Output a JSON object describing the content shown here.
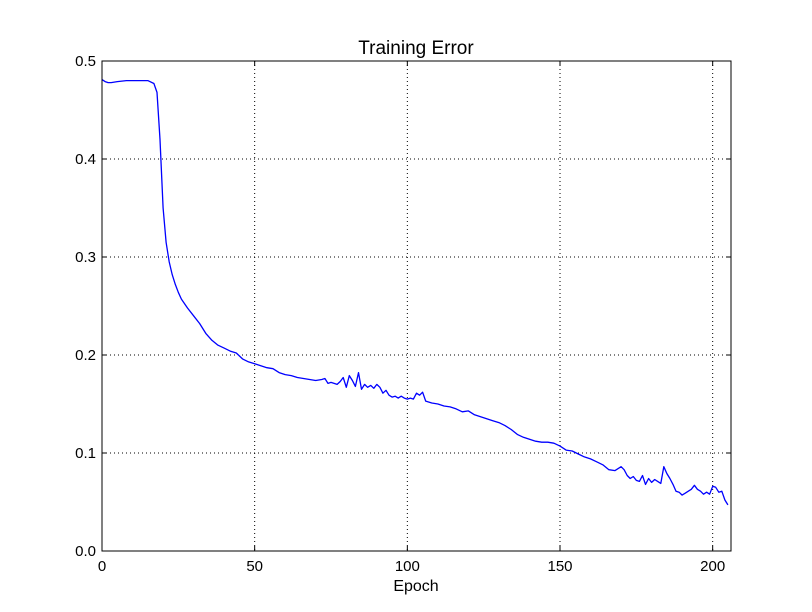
{
  "chart_data": {
    "type": "line",
    "title": "Training Error",
    "xlabel": "Epoch",
    "ylabel": "",
    "xlim": [
      0,
      206
    ],
    "ylim": [
      0.0,
      0.5
    ],
    "x_ticks": [
      0,
      50,
      100,
      150,
      200
    ],
    "x_tick_labels": [
      "0",
      "50",
      "100",
      "150",
      "200"
    ],
    "y_ticks": [
      0.0,
      0.1,
      0.2,
      0.3,
      0.4,
      0.5
    ],
    "y_tick_labels": [
      "0.0",
      "0.1",
      "0.2",
      "0.3",
      "0.4",
      "0.5"
    ],
    "grid": true,
    "series": [
      {
        "color": "#0000ff",
        "x": [
          0,
          1,
          2,
          3,
          5,
          8,
          12,
          15,
          17,
          18,
          19,
          20,
          21,
          22,
          23,
          24,
          25,
          26,
          28,
          30,
          32,
          34,
          36,
          38,
          40,
          42,
          44,
          46,
          48,
          50,
          52,
          54,
          56,
          58,
          60,
          62,
          64,
          66,
          68,
          70,
          72,
          73,
          74,
          75,
          76,
          77,
          78,
          79,
          80,
          81,
          82,
          83,
          84,
          85,
          86,
          87,
          88,
          89,
          90,
          91,
          92,
          93,
          94,
          95,
          96,
          97,
          98,
          99,
          100,
          101,
          102,
          103,
          104,
          105,
          106,
          108,
          110,
          112,
          114,
          116,
          118,
          120,
          122,
          124,
          126,
          128,
          130,
          132,
          134,
          136,
          138,
          140,
          142,
          144,
          146,
          148,
          150,
          152,
          154,
          156,
          158,
          160,
          162,
          164,
          166,
          168,
          170,
          171,
          172,
          173,
          174,
          175,
          176,
          177,
          178,
          179,
          180,
          181,
          182,
          183,
          184,
          185,
          186,
          187,
          188,
          189,
          190,
          191,
          192,
          193,
          194,
          195,
          196,
          197,
          198,
          199,
          200,
          201,
          202,
          203,
          204,
          205
        ],
        "y": [
          0.481,
          0.479,
          0.478,
          0.478,
          0.479,
          0.48,
          0.48,
          0.48,
          0.477,
          0.468,
          0.42,
          0.35,
          0.315,
          0.295,
          0.282,
          0.272,
          0.264,
          0.257,
          0.248,
          0.24,
          0.232,
          0.222,
          0.215,
          0.21,
          0.207,
          0.204,
          0.202,
          0.196,
          0.193,
          0.191,
          0.189,
          0.187,
          0.186,
          0.182,
          0.18,
          0.179,
          0.177,
          0.176,
          0.175,
          0.174,
          0.175,
          0.176,
          0.171,
          0.172,
          0.171,
          0.17,
          0.173,
          0.177,
          0.167,
          0.179,
          0.174,
          0.168,
          0.182,
          0.165,
          0.17,
          0.167,
          0.169,
          0.166,
          0.17,
          0.167,
          0.161,
          0.164,
          0.159,
          0.157,
          0.158,
          0.156,
          0.158,
          0.156,
          0.155,
          0.156,
          0.155,
          0.161,
          0.159,
          0.162,
          0.153,
          0.151,
          0.15,
          0.148,
          0.147,
          0.145,
          0.142,
          0.143,
          0.139,
          0.137,
          0.135,
          0.133,
          0.131,
          0.128,
          0.124,
          0.119,
          0.116,
          0.114,
          0.112,
          0.111,
          0.111,
          0.11,
          0.107,
          0.103,
          0.102,
          0.099,
          0.096,
          0.094,
          0.091,
          0.088,
          0.083,
          0.082,
          0.086,
          0.083,
          0.077,
          0.074,
          0.076,
          0.072,
          0.071,
          0.077,
          0.068,
          0.074,
          0.07,
          0.073,
          0.071,
          0.069,
          0.086,
          0.079,
          0.074,
          0.068,
          0.061,
          0.06,
          0.057,
          0.059,
          0.061,
          0.063,
          0.067,
          0.063,
          0.061,
          0.058,
          0.06,
          0.058,
          0.066,
          0.065,
          0.06,
          0.061,
          0.052,
          0.047
        ]
      }
    ]
  }
}
